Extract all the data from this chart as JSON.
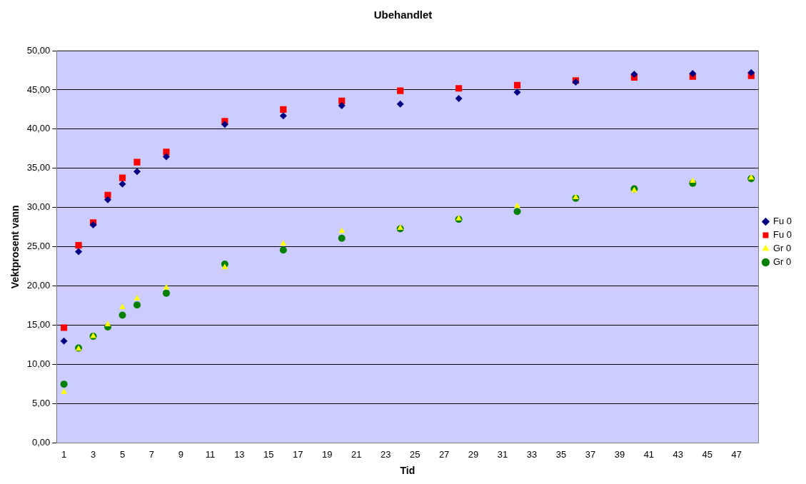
{
  "chart_data": {
    "type": "scatter",
    "title": "Ubehandlet",
    "xlabel": "Tid",
    "ylabel": "Vektprosent vann",
    "x": [
      1,
      2,
      3,
      4,
      5,
      6,
      8,
      12,
      16,
      20,
      24,
      28,
      32,
      36,
      40,
      44,
      48
    ],
    "series": [
      {
        "name": "Fu 0",
        "color": "#000080",
        "marker": "diamond",
        "values": [
          13.0,
          24.4,
          27.8,
          31.0,
          33.0,
          34.6,
          36.5,
          40.6,
          41.7,
          43.0,
          43.2,
          43.9,
          44.7,
          46.0,
          47.0,
          47.1,
          47.2
        ]
      },
      {
        "name": "Fu 0",
        "color": "#ff0000",
        "marker": "square",
        "values": [
          14.7,
          25.2,
          28.1,
          31.6,
          33.8,
          35.8,
          37.1,
          41.0,
          42.5,
          43.6,
          44.9,
          45.2,
          45.6,
          46.2,
          46.6,
          46.7,
          46.8
        ]
      },
      {
        "name": "Gr 0",
        "color": "#ffff00",
        "marker": "triangle",
        "values": [
          6.5,
          12.0,
          13.6,
          15.1,
          17.3,
          18.4,
          19.8,
          22.4,
          25.4,
          27.0,
          27.4,
          28.6,
          30.2,
          31.3,
          32.2,
          33.4,
          33.8
        ]
      },
      {
        "name": "Gr 0",
        "color": "#008000",
        "marker": "circle",
        "values": [
          7.5,
          12.1,
          13.6,
          14.8,
          16.3,
          17.6,
          19.1,
          22.8,
          24.6,
          26.1,
          27.3,
          28.5,
          29.5,
          31.2,
          32.4,
          33.1,
          33.7
        ]
      }
    ],
    "xlim": [
      0.5,
      48.5
    ],
    "xticks": [
      1,
      3,
      5,
      7,
      9,
      11,
      13,
      15,
      17,
      19,
      21,
      23,
      25,
      27,
      29,
      31,
      33,
      35,
      37,
      39,
      41,
      43,
      45,
      47
    ],
    "ylim": [
      0,
      50
    ],
    "yticks": [
      {
        "value": 0,
        "label": "0,00"
      },
      {
        "value": 5,
        "label": "5,00"
      },
      {
        "value": 10,
        "label": "10,00"
      },
      {
        "value": 15,
        "label": "15,00"
      },
      {
        "value": 20,
        "label": "20,00"
      },
      {
        "value": 25,
        "label": "25,00"
      },
      {
        "value": 30,
        "label": "30,00"
      },
      {
        "value": 35,
        "label": "35,00"
      },
      {
        "value": 40,
        "label": "40,00"
      },
      {
        "value": 45,
        "label": "45,00"
      },
      {
        "value": 50,
        "label": "50,00"
      }
    ],
    "grid": "y",
    "legend": "right"
  }
}
